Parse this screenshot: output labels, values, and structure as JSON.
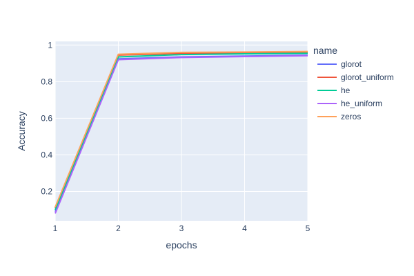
{
  "chart_data": {
    "type": "line",
    "title": "",
    "xlabel": "epochs",
    "ylabel": "Accuracy",
    "x": [
      1,
      2,
      3,
      4,
      5
    ],
    "xlim": [
      1,
      5
    ],
    "ylim": [
      0.04,
      1.02
    ],
    "x_ticks": [
      "1",
      "2",
      "3",
      "4",
      "5"
    ],
    "y_ticks": [
      0.2,
      0.4,
      0.6,
      0.8,
      1
    ],
    "y_tick_labels": [
      "0.2",
      "0.4",
      "0.6",
      "0.8",
      "1"
    ],
    "grid": true,
    "legend_title": "name",
    "legend_position": "right",
    "plot_background": "#E5ECF6",
    "series": [
      {
        "name": "glorot",
        "color": "#636EFA",
        "values": [
          0.09,
          0.925,
          0.935,
          0.94,
          0.945
        ]
      },
      {
        "name": "glorot_uniform",
        "color": "#EF553B",
        "values": [
          0.11,
          0.945,
          0.955,
          0.957,
          0.96
        ]
      },
      {
        "name": "he",
        "color": "#00CC96",
        "values": [
          0.1,
          0.935,
          0.948,
          0.952,
          0.955
        ]
      },
      {
        "name": "he_uniform",
        "color": "#AB63FA",
        "values": [
          0.08,
          0.92,
          0.932,
          0.937,
          0.942
        ]
      },
      {
        "name": "zeros",
        "color": "#FFA15A",
        "values": [
          0.115,
          0.95,
          0.96,
          0.962,
          0.965
        ]
      }
    ]
  }
}
